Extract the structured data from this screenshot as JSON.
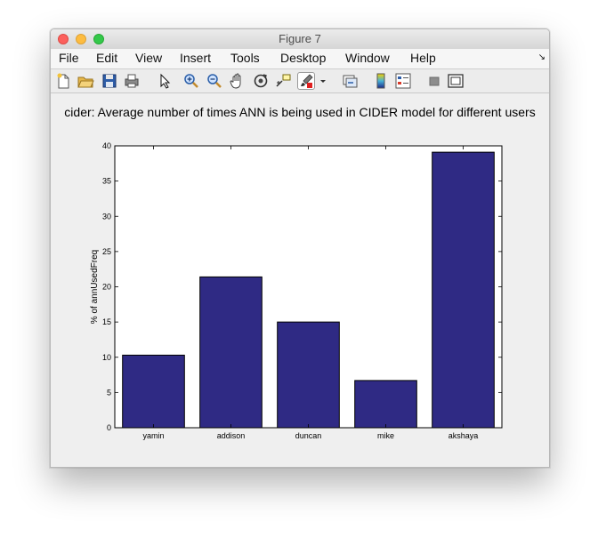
{
  "window": {
    "title": "Figure 7"
  },
  "menu": {
    "items": [
      "File",
      "Edit",
      "View",
      "Insert",
      "Tools",
      "Desktop",
      "Window",
      "Help"
    ],
    "overflow_icon": "dock-arrow-icon"
  },
  "toolbar": {
    "icons": [
      "new-figure-icon",
      "open-file-icon",
      "save-icon",
      "print-icon",
      "pointer-icon",
      "zoom-in-icon",
      "zoom-out-icon",
      "pan-hand-icon",
      "rotate-3d-icon",
      "data-cursor-icon",
      "brush-icon",
      "brush-dropdown-icon",
      "link-plot-icon",
      "colorbar-icon",
      "legend-icon",
      "hide-plot-tools-icon",
      "show-plot-tools-icon"
    ]
  },
  "chart_data": {
    "type": "bar",
    "title": "cider: Average number of times ANN is being used in CIDER model for different users",
    "xlabel": "",
    "ylabel": "% of annUsedFreq",
    "categories": [
      "yamin",
      "addison",
      "duncan",
      "mike",
      "akshaya"
    ],
    "values": [
      10.3,
      21.4,
      15.0,
      6.7,
      39.1
    ],
    "ylim": [
      0,
      40
    ],
    "yticks": [
      0,
      5,
      10,
      15,
      20,
      25,
      30,
      35,
      40
    ],
    "grid": false,
    "legend": "none",
    "bar_color": "#2f2a84"
  }
}
